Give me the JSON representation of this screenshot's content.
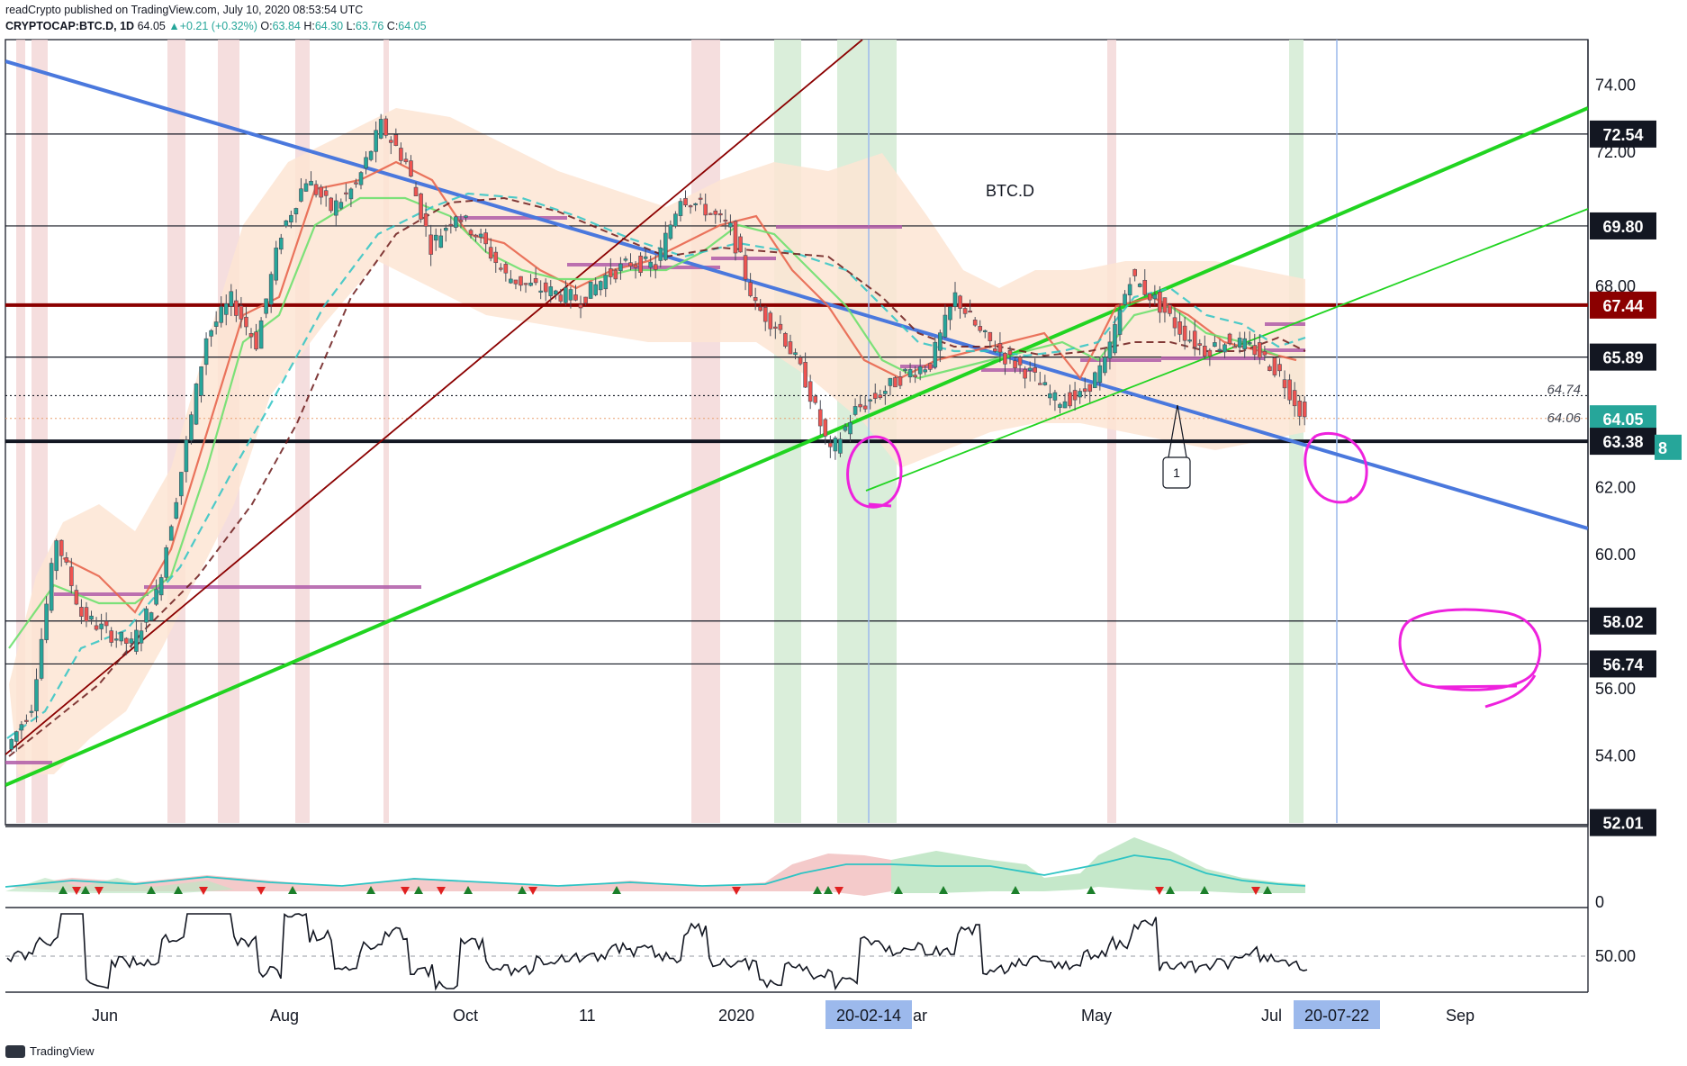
{
  "header": {
    "publisher_line": "readCrypto published on TradingView.com, July 10, 2020 08:53:54 UTC",
    "symbol": "CRYPTOCAP:BTC.D, 1D",
    "last": "64.05",
    "change_up_arrow": "▲",
    "change": "+0.21 (+0.32%)",
    "o_label": "O:",
    "o": "63.84",
    "h_label": "H:",
    "h": "64.30",
    "l_label": "L:",
    "l": "63.76",
    "c_label": "C:",
    "c": "64.05"
  },
  "footer": {
    "brand": "TradingView"
  },
  "chart_data": {
    "type": "line",
    "title": "BTC.D",
    "y_axis": {
      "ticks": [
        "74.00",
        "72.00",
        "68.00",
        "62.00",
        "60.00",
        "56.00",
        "54.00"
      ],
      "tick_values": [
        74,
        72,
        68,
        62,
        60,
        56,
        54
      ],
      "range": [
        52.01,
        75.3
      ]
    },
    "x_axis": {
      "ticks": [
        "Jun",
        "Aug",
        "Oct",
        "11",
        "2020",
        "ar",
        "May",
        "Jul",
        "Sep"
      ],
      "highlighted_dates": [
        "20-02-14",
        "20-07-22"
      ]
    },
    "price_boxes": [
      {
        "value": "72.54",
        "color": "#131722"
      },
      {
        "value": "69.80",
        "color": "#131722"
      },
      {
        "value": "67.44",
        "color": "#8b0000"
      },
      {
        "value": "65.89",
        "color": "#131722"
      },
      {
        "value": "64.05",
        "color": "#26a69a"
      },
      {
        "value": "63.38",
        "color": "#131722"
      },
      {
        "value": "58.02",
        "color": "#131722"
      },
      {
        "value": "56.74",
        "color": "#131722"
      },
      {
        "value": "52.01",
        "color": "#131722"
      }
    ],
    "price_notes": [
      "64.74",
      "64.06"
    ],
    "partial_label": "8",
    "horizontal_levels": [
      72.54,
      69.8,
      67.44,
      65.89,
      64.74,
      63.38,
      58.02,
      56.74
    ],
    "price_series": [
      54.2,
      55.5,
      60.5,
      58.2,
      57.7,
      57.3,
      58.8,
      62.5,
      66.5,
      67.6,
      66.3,
      69.6,
      71.2,
      70.3,
      71.0,
      72.8,
      71.7,
      69.2,
      70.2,
      69.4,
      68.3,
      68.0,
      67.8,
      67.6,
      68.3,
      68.7,
      68.6,
      70.7,
      70.3,
      69.7,
      67.4,
      66.7,
      65.2,
      63.0,
      64.3,
      64.8,
      65.4,
      65.7,
      67.7,
      66.6,
      65.9,
      65.4,
      64.6,
      64.7,
      65.7,
      68.3,
      67.6,
      66.7,
      66.1,
      66.4,
      66.1,
      65.4,
      64.05
    ],
    "trendlines": [
      {
        "name": "",
        "color": "#4a78dd"
      },
      {
        "name": "",
        "color": "#21d421"
      },
      {
        "name": "",
        "color": "#8b0000"
      }
    ],
    "lower_panel_1": {
      "ticks": [
        "0"
      ]
    },
    "lower_panel_2": {
      "ticks": [
        "50.00"
      ]
    },
    "annotations": [
      {
        "label": "1"
      }
    ]
  },
  "colors": {
    "trend_blue": "#4a78dd",
    "trend_green": "#21d421",
    "trend_darkred": "#8b0000",
    "ema_red": "#e8664e",
    "ema_green": "#6ee06e",
    "ema_teal": "#2ec4c4",
    "band_fill": "#fde5d3",
    "marker_magenta": "#ee22dd",
    "date_highlight": "#9cb9ec"
  }
}
